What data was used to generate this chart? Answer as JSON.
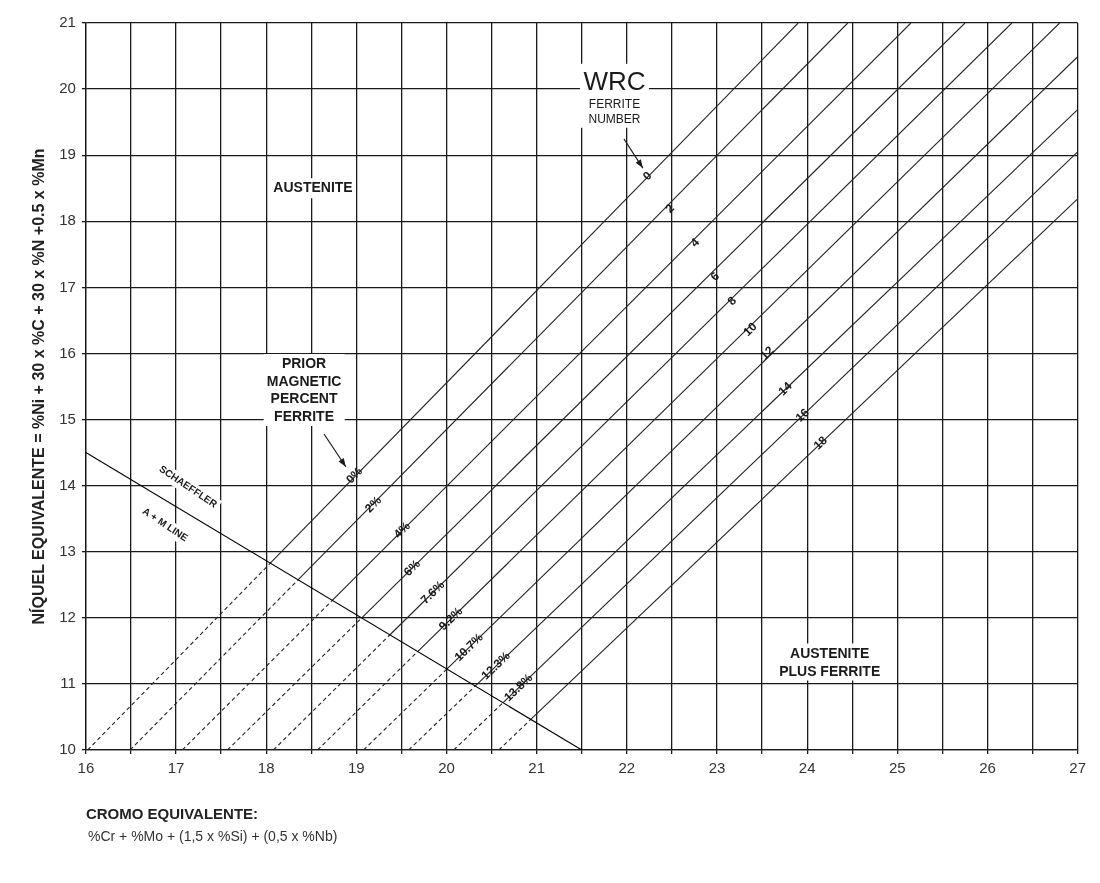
{
  "chart_data": {
    "type": "line",
    "xlabel": "CROMO EQUIVALENTE:",
    "ylabel": "NÍQUEL EQUIVALENTE = %Ni + 30 x %C + 30 x %N +0.5 x %Mn",
    "xlim": [
      16,
      27
    ],
    "ylim": [
      10,
      21
    ],
    "xticks": [
      16,
      {
        "value": 16.5,
        "label": null
      },
      17,
      {
        "value": 17.5,
        "label": null
      },
      18,
      {
        "value": 18.5,
        "label": null
      },
      19,
      {
        "value": 19.5,
        "label": null
      },
      20,
      {
        "value": 20.5,
        "label": null
      },
      21,
      {
        "value": 21.5,
        "label": null
      },
      22,
      {
        "value": 22.5,
        "label": null
      },
      23,
      {
        "value": 23.5,
        "label": null
      },
      24,
      {
        "value": 24.5,
        "label": null
      },
      25,
      {
        "value": 25.5,
        "label": null
      },
      26,
      {
        "value": 26.5,
        "label": null
      },
      27
    ],
    "yticks": [
      10,
      11,
      12,
      13,
      14,
      15,
      16,
      17,
      18,
      19,
      20,
      21
    ],
    "grid": true,
    "legend": false,
    "marker": "none",
    "series": [
      {
        "color": "#000000",
        "line_style": "solid",
        "x": [
          16,
          21.5
        ],
        "values": [
          14.5,
          10
        ]
      },
      {
        "color": "#222222",
        "line_style": "dashed",
        "x": [
          16.02,
          18.04
        ],
        "values": [
          10,
          12.82
        ]
      },
      {
        "color": "#222222",
        "line_style": "solid",
        "x": [
          18.04,
          23.9
        ],
        "values": [
          12.82,
          21
        ]
      },
      {
        "color": "#222222",
        "line_style": "dashed",
        "x": [
          16.49,
          18.35
        ],
        "values": [
          10,
          12.57
        ]
      },
      {
        "color": "#222222",
        "line_style": "solid",
        "x": [
          18.35,
          24.45
        ],
        "values": [
          12.57,
          21
        ]
      },
      {
        "color": "#222222",
        "line_style": "dashed",
        "x": [
          17.07,
          18.73
        ],
        "values": [
          10,
          12.26
        ]
      },
      {
        "color": "#222222",
        "line_style": "solid",
        "x": [
          18.73,
          25.15
        ],
        "values": [
          12.26,
          21
        ]
      },
      {
        "color": "#222222",
        "line_style": "dashed",
        "x": [
          17.57,
          19.06
        ],
        "values": [
          10,
          12
        ]
      },
      {
        "color": "#222222",
        "line_style": "solid",
        "x": [
          19.06,
          25.75
        ],
        "values": [
          12,
          21
        ]
      },
      {
        "color": "#222222",
        "line_style": "dashed",
        "x": [
          18.08,
          19.37
        ],
        "values": [
          10,
          11.74
        ]
      },
      {
        "color": "#222222",
        "line_style": "solid",
        "x": [
          19.37,
          26.27
        ],
        "values": [
          11.74,
          21
        ]
      },
      {
        "color": "#222222",
        "line_style": "dashed",
        "x": [
          18.57,
          19.68
        ],
        "values": [
          10,
          11.49
        ]
      },
      {
        "color": "#222222",
        "line_style": "solid",
        "x": [
          19.68,
          26.8
        ],
        "values": [
          11.49,
          21
        ]
      },
      {
        "color": "#222222",
        "line_style": "dashed",
        "x": [
          19.08,
          20
        ],
        "values": [
          10,
          11.22
        ]
      },
      {
        "color": "#222222",
        "line_style": "solid",
        "x": [
          20,
          27
        ],
        "values": [
          11.22,
          20.49
        ]
      },
      {
        "color": "#222222",
        "line_style": "dashed",
        "x": [
          19.58,
          20.32
        ],
        "values": [
          10,
          10.97
        ]
      },
      {
        "color": "#222222",
        "line_style": "solid",
        "x": [
          20.32,
          27
        ],
        "values": [
          10.97,
          19.69
        ]
      },
      {
        "color": "#222222",
        "line_style": "dashed",
        "x": [
          20.08,
          20.63
        ],
        "values": [
          10,
          10.72
        ]
      },
      {
        "color": "#222222",
        "line_style": "solid",
        "x": [
          20.63,
          27
        ],
        "values": [
          10.72,
          19.05
        ]
      },
      {
        "color": "#222222",
        "line_style": "dashed",
        "x": [
          20.58,
          20.94
        ],
        "values": [
          10,
          10.47
        ]
      },
      {
        "color": "#222222",
        "line_style": "solid",
        "x": [
          20.94,
          27
        ],
        "values": [
          10.47,
          18.34
        ]
      }
    ],
    "annotations": [
      "WRC\nFERRITE\nNUMBER",
      "AUSTENITE",
      "PRIOR\nMAGNETIC\nPERCENT\nFERRITE",
      "SCHAEFFLER",
      "A + M  LINE",
      "AUSTENITE\nPLUS FERRITE",
      {
        "text": "0",
        "x": 22.23,
        "y": 18.68
      },
      {
        "text": "2",
        "x": 22.48,
        "y": 18.19
      },
      {
        "text": "4",
        "x": 22.76,
        "y": 17.67
      },
      {
        "text": "6",
        "x": 22.98,
        "y": 17.16
      },
      {
        "text": "8",
        "x": 23.17,
        "y": 16.79
      },
      {
        "text": "10",
        "x": 23.37,
        "y": 16.36
      },
      {
        "text": "12",
        "x": 23.56,
        "y": 16.0
      },
      {
        "text": "14",
        "x": 23.76,
        "y": 15.46
      },
      {
        "text": "16",
        "x": 23.95,
        "y": 15.06
      },
      {
        "text": "18",
        "x": 24.15,
        "y": 14.64
      },
      {
        "text": "0%",
        "x": 18.98,
        "y": 14.15
      },
      {
        "text": "2%",
        "x": 19.19,
        "y": 13.71
      },
      {
        "text": "4%",
        "x": 19.51,
        "y": 13.32
      },
      {
        "text": "6%",
        "x": 19.62,
        "y": 12.75
      },
      {
        "text": "7.6%",
        "x": 19.85,
        "y": 12.38
      },
      {
        "text": "9.2%",
        "x": 20.05,
        "y": 11.98
      },
      {
        "text": "10.7%",
        "x": 20.25,
        "y": 11.55
      },
      {
        "text": "12.3%",
        "x": 20.55,
        "y": 11.27
      },
      {
        "text": "13.8%",
        "x": 20.8,
        "y": 10.94
      },
      "%Cr + %Mo + (1,5 x %Si) + (0,5 x %Nb)"
    ]
  }
}
